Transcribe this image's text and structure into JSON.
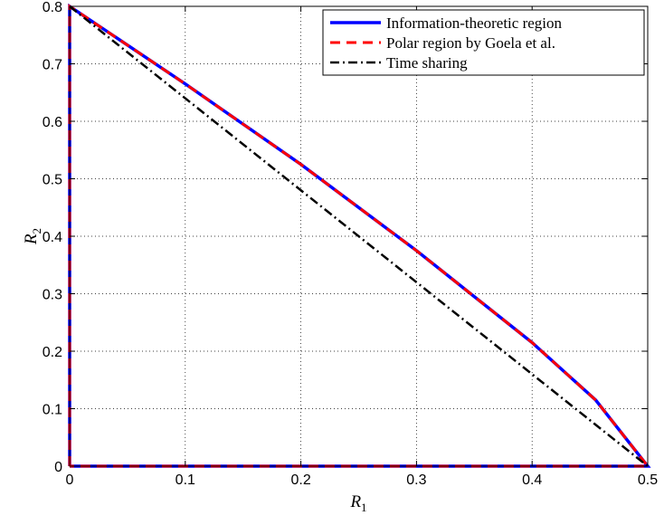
{
  "chart_data": {
    "type": "line",
    "xlabel": "R",
    "xlabel_sub": "1",
    "ylabel": "R",
    "ylabel_sub": "2",
    "xlim": [
      0,
      0.5
    ],
    "ylim": [
      0,
      0.8
    ],
    "xticks": [
      0,
      0.1,
      0.2,
      0.3,
      0.4,
      0.5
    ],
    "yticks": [
      0,
      0.1,
      0.2,
      0.3,
      0.4,
      0.5,
      0.6,
      0.7,
      0.8
    ],
    "xtick_labels": [
      "0",
      "0.1",
      "0.2",
      "0.3",
      "0.4",
      "0.5"
    ],
    "ytick_labels": [
      "0",
      "0.1",
      "0.2",
      "0.3",
      "0.4",
      "0.5",
      "0.6",
      "0.7",
      "0.8"
    ],
    "grid": true,
    "grid_style": "dotted",
    "legend_position": "top-right",
    "series": [
      {
        "name": "Information-theoretic region",
        "color": "#0000ff",
        "line_style": "solid",
        "x": [
          0,
          0,
          0.1,
          0.2,
          0.3,
          0.4,
          0.455,
          0.5,
          0
        ],
        "y": [
          0,
          0.8,
          0.665,
          0.525,
          0.375,
          0.215,
          0.115,
          0,
          0
        ]
      },
      {
        "name": "Polar region by Goela et al.",
        "color": "#ff0000",
        "line_style": "dashed",
        "x": [
          0,
          0,
          0.1,
          0.2,
          0.3,
          0.4,
          0.455,
          0.5,
          0
        ],
        "y": [
          0,
          0.8,
          0.665,
          0.525,
          0.375,
          0.215,
          0.115,
          0,
          0
        ]
      },
      {
        "name": "Time sharing",
        "color": "#000000",
        "line_style": "dashdot",
        "x": [
          0,
          0.5
        ],
        "y": [
          0.8,
          0
        ]
      }
    ]
  }
}
